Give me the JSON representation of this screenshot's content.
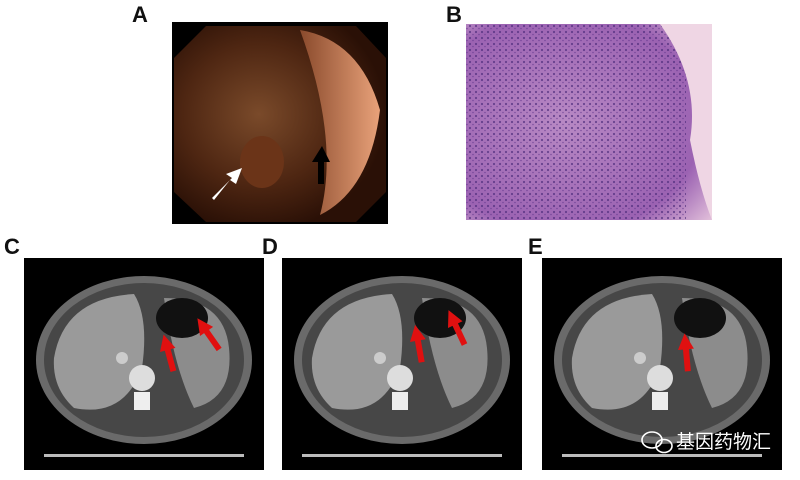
{
  "panels": [
    {
      "label": "A"
    },
    {
      "label": "B"
    },
    {
      "label": "C"
    },
    {
      "label": "D"
    },
    {
      "label": "E"
    }
  ],
  "watermark": "基因药物汇"
}
